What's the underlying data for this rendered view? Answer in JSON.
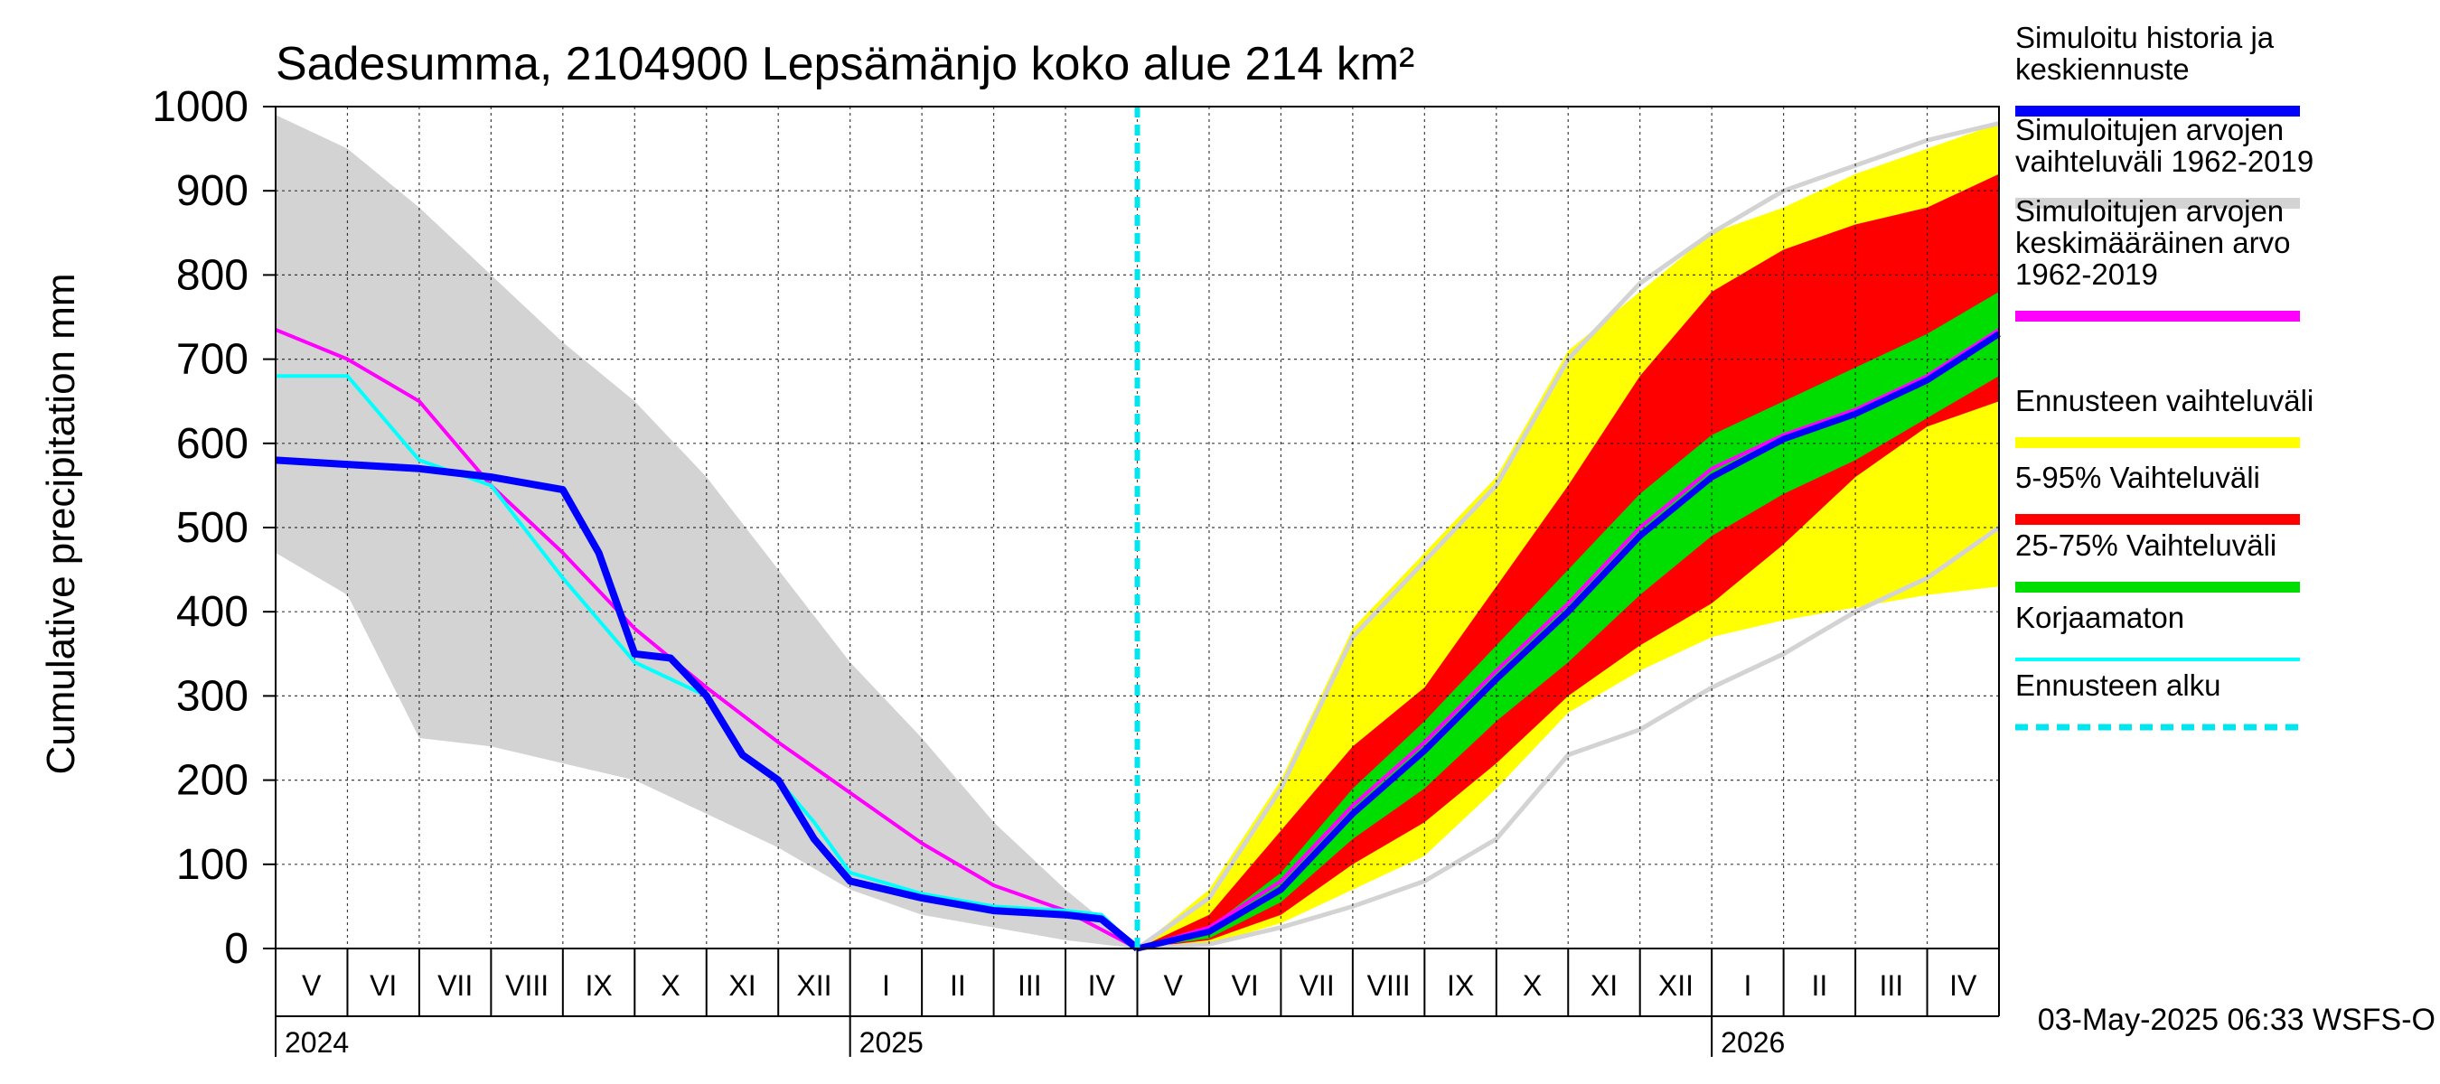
{
  "chart_data": {
    "type": "area",
    "title": "Sadesumma, 2104900 Lepsämänjo koko alue 214 km²",
    "ylabel": "Cumulative precipitation   mm",
    "ylim": [
      0,
      1000
    ],
    "yticks": [
      "0",
      "100",
      "200",
      "300",
      "400",
      "500",
      "600",
      "700",
      "800",
      "900",
      "1000"
    ],
    "months": [
      "V",
      "VI",
      "VII",
      "VIII",
      "IX",
      "X",
      "XI",
      "XII",
      "I",
      "II",
      "III",
      "IV",
      "V",
      "VI",
      "VII",
      "VIII",
      "IX",
      "X",
      "XI",
      "XII",
      "I",
      "II",
      "III",
      "IV"
    ],
    "years": [
      "2024",
      "2025",
      "2026"
    ],
    "timestamp": "03-May-2025 06:33 WSFS-O",
    "forecast_start_month_index": 12,
    "colors": {
      "history": "#0000ff",
      "hist_range": "#d3d3d3",
      "mean": "#ff00ff",
      "forecast_range": "#ffff00",
      "p5_95": "#ff0000",
      "p25_75": "#00dd00",
      "uncorrected": "#00ffff",
      "forecast_start": "#00e5ee"
    },
    "legend": [
      {
        "lines": [
          "Simuloitu historia ja",
          "keskiennuste"
        ],
        "color": "#0000ff",
        "style": "solid"
      },
      {
        "lines": [
          "Simuloitujen arvojen",
          "vaihteluväli 1962-2019"
        ],
        "color": "#d3d3d3",
        "style": "solid"
      },
      {
        "lines": [
          "Simuloitujen arvojen",
          "keskimääräinen arvo",
          "   1962-2019"
        ],
        "color": "#ff00ff",
        "style": "solid"
      },
      {
        "lines": [
          "Ennusteen vaihteluväli"
        ],
        "color": "#ffff00",
        "style": "solid"
      },
      {
        "lines": [
          "5-95% Vaihteluväli"
        ],
        "color": "#ff0000",
        "style": "solid"
      },
      {
        "lines": [
          "25-75% Vaihteluväli"
        ],
        "color": "#00dd00",
        "style": "solid"
      },
      {
        "lines": [
          "Korjaamaton"
        ],
        "color": "#00ffff",
        "style": "solid"
      },
      {
        "lines": [
          "Ennusteen alku"
        ],
        "color": "#00e5ee",
        "style": "dashed"
      }
    ],
    "series": {
      "hist_range": {
        "x": [
          0,
          1,
          2,
          3,
          4,
          5,
          6,
          7,
          8,
          9,
          10,
          11,
          12
        ],
        "upper": [
          990,
          950,
          880,
          800,
          720,
          650,
          560,
          450,
          340,
          250,
          150,
          70,
          0
        ],
        "lower": [
          470,
          420,
          250,
          240,
          220,
          200,
          160,
          120,
          70,
          40,
          25,
          10,
          0
        ]
      },
      "history": {
        "x": [
          0,
          1,
          2,
          3,
          4,
          4.5,
          5,
          5.5,
          6,
          6.5,
          7,
          7.5,
          8,
          9,
          10,
          11,
          11.5,
          12
        ],
        "y": [
          580,
          575,
          570,
          560,
          545,
          470,
          350,
          345,
          300,
          230,
          200,
          130,
          80,
          60,
          45,
          40,
          35,
          0
        ]
      },
      "uncorrected": {
        "x": [
          0,
          1,
          2,
          3,
          4,
          5,
          6,
          6.5,
          7,
          7.5,
          8,
          9,
          10,
          11,
          11.5,
          12
        ],
        "y": [
          680,
          680,
          580,
          550,
          440,
          340,
          300,
          230,
          200,
          150,
          90,
          65,
          50,
          45,
          40,
          0
        ]
      },
      "mean": {
        "x": [
          0,
          1,
          2,
          3,
          4,
          5,
          6,
          7,
          8,
          9,
          10,
          11,
          12
        ],
        "y": [
          735,
          700,
          650,
          550,
          470,
          380,
          310,
          245,
          185,
          125,
          75,
          45,
          0
        ]
      },
      "forecast_range": {
        "x": [
          12,
          13,
          14,
          15,
          16,
          17,
          18,
          19,
          20,
          21,
          22,
          23,
          24
        ],
        "upper": [
          0,
          70,
          200,
          380,
          470,
          560,
          710,
          780,
          850,
          880,
          920,
          950,
          980
        ],
        "lower": [
          0,
          5,
          30,
          70,
          110,
          190,
          280,
          330,
          370,
          390,
          405,
          420,
          430
        ]
      },
      "p5_95": {
        "x": [
          12,
          13,
          14,
          15,
          16,
          17,
          18,
          19,
          20,
          21,
          22,
          23,
          24
        ],
        "upper": [
          0,
          40,
          140,
          240,
          310,
          430,
          550,
          680,
          780,
          830,
          860,
          880,
          920
        ],
        "lower": [
          0,
          10,
          40,
          100,
          150,
          220,
          300,
          360,
          410,
          480,
          560,
          620,
          650
        ]
      },
      "p25_75": {
        "x": [
          12,
          13,
          14,
          15,
          16,
          17,
          18,
          19,
          20,
          21,
          22,
          23,
          24
        ],
        "upper": [
          0,
          25,
          90,
          190,
          270,
          360,
          450,
          540,
          610,
          650,
          690,
          730,
          780
        ],
        "lower": [
          0,
          12,
          55,
          130,
          190,
          270,
          340,
          420,
          490,
          540,
          580,
          630,
          680
        ]
      },
      "median_forecast": {
        "x": [
          12,
          13,
          14,
          15,
          16,
          17,
          18,
          19,
          20,
          21,
          22,
          23,
          24
        ],
        "y": [
          0,
          20,
          70,
          160,
          235,
          320,
          400,
          490,
          560,
          605,
          635,
          675,
          730
        ]
      },
      "mean_forecast": {
        "x": [
          12,
          13,
          14,
          15,
          16,
          17,
          18,
          19,
          20,
          21,
          22,
          23,
          24
        ],
        "y": [
          0,
          25,
          80,
          170,
          245,
          330,
          410,
          500,
          570,
          610,
          640,
          680,
          735
        ]
      },
      "hist_range_future": {
        "x": [
          12,
          13,
          14,
          15,
          16,
          17,
          18,
          19,
          20,
          21,
          22,
          23,
          24
        ],
        "upper": [
          0,
          60,
          190,
          370,
          460,
          550,
          700,
          790,
          850,
          900,
          930,
          960,
          980
        ],
        "lower": [
          0,
          5,
          25,
          50,
          80,
          130,
          230,
          260,
          310,
          350,
          400,
          440,
          500
        ]
      }
    }
  }
}
